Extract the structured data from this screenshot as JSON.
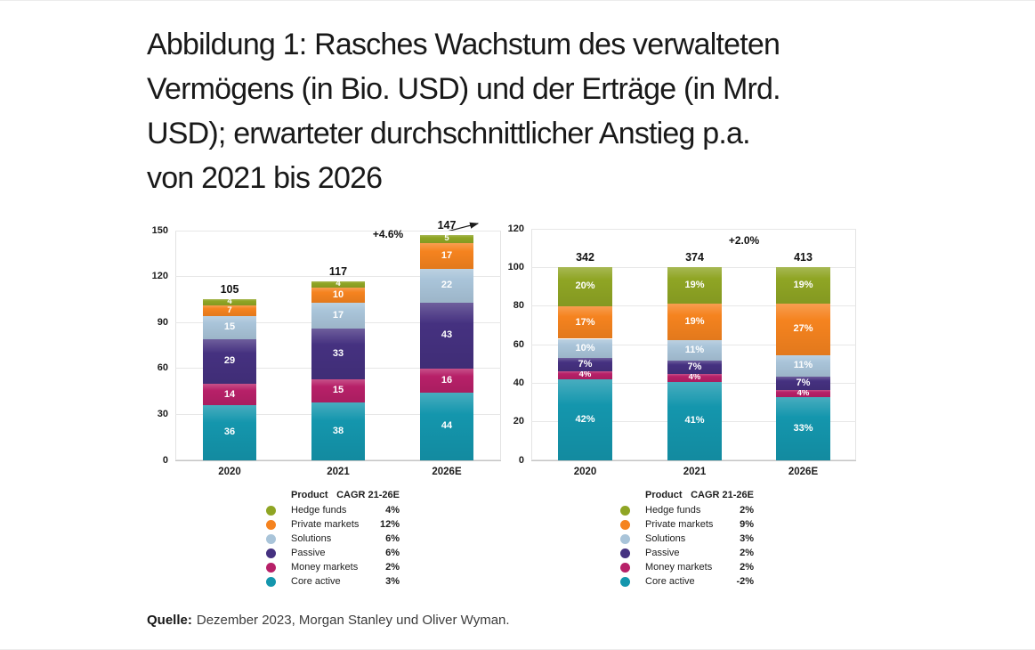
{
  "title": "Abbildung 1: Rasches Wachstum des verwalteten\nVermögens (in Bio. USD) und der Erträge (in Mrd.\nUSD); erwarteter durchschnittlicher Anstieg p.a.\nvon 2021 bis 2026",
  "source": {
    "label": "Quelle:",
    "text": "Dezember 2023, Morgan Stanley und Oliver Wyman."
  },
  "chart_data": [
    {
      "type": "bar",
      "stacked": true,
      "categories": [
        "2020",
        "2021",
        "2026E"
      ],
      "series": [
        {
          "name": "Core active",
          "color": "#1496ad",
          "values": [
            36,
            38,
            44
          ]
        },
        {
          "name": "Money markets",
          "color": "#b72068",
          "values": [
            14,
            15,
            16
          ]
        },
        {
          "name": "Passive",
          "color": "#453180",
          "values": [
            29,
            33,
            43
          ]
        },
        {
          "name": "Solutions",
          "color": "#a9c4d9",
          "values": [
            15,
            17,
            22
          ]
        },
        {
          "name": "Private markets",
          "color": "#f5831f",
          "values": [
            7,
            10,
            17
          ]
        },
        {
          "name": "Hedge funds",
          "color": "#8fa524",
          "values": [
            4,
            4,
            5
          ]
        }
      ],
      "totals": [
        "105",
        "117",
        "147"
      ],
      "growth_label": "+4.6%",
      "ylim": [
        0,
        150
      ],
      "y_ticks": [
        0,
        30,
        60,
        90,
        120,
        150
      ],
      "value_suffix": "",
      "normalize_to": null,
      "grid": true,
      "legend": {
        "product_header": "Product",
        "cagr_header": "CAGR 21-26E",
        "rows": [
          {
            "label": "Hedge funds",
            "cagr": "4%"
          },
          {
            "label": "Private markets",
            "cagr": "12%"
          },
          {
            "label": "Solutions",
            "cagr": "6%"
          },
          {
            "label": "Passive",
            "cagr": "6%"
          },
          {
            "label": "Money markets",
            "cagr": "2%"
          },
          {
            "label": "Core active",
            "cagr": "3%"
          }
        ]
      }
    },
    {
      "type": "bar",
      "stacked": true,
      "categories": [
        "2020",
        "2021",
        "2026E"
      ],
      "series": [
        {
          "name": "Core active",
          "color": "#1496ad",
          "values": [
            42,
            41,
            33
          ]
        },
        {
          "name": "Money markets",
          "color": "#b72068",
          "values": [
            4,
            4,
            4
          ]
        },
        {
          "name": "Passive",
          "color": "#453180",
          "values": [
            7,
            7,
            7
          ]
        },
        {
          "name": "Solutions",
          "color": "#a9c4d9",
          "values": [
            10,
            11,
            11
          ]
        },
        {
          "name": "Private markets",
          "color": "#f5831f",
          "values": [
            17,
            19,
            27
          ]
        },
        {
          "name": "Hedge funds",
          "color": "#8fa524",
          "values": [
            20,
            19,
            19
          ]
        }
      ],
      "totals": [
        "342",
        "374",
        "413"
      ],
      "growth_label": "+2.0%",
      "ylim": [
        0,
        120
      ],
      "y_ticks": [
        0,
        20,
        40,
        60,
        80,
        100,
        120
      ],
      "value_suffix": "%",
      "normalize_to": 100,
      "grid": true,
      "legend": {
        "product_header": "Product",
        "cagr_header": "CAGR 21-26E",
        "rows": [
          {
            "label": "Hedge funds",
            "cagr": "2%"
          },
          {
            "label": "Private markets",
            "cagr": "9%"
          },
          {
            "label": "Solutions",
            "cagr": "3%"
          },
          {
            "label": "Passive",
            "cagr": "2%"
          },
          {
            "label": "Money markets",
            "cagr": "2%"
          },
          {
            "label": "Core active",
            "cagr": "-2%"
          }
        ]
      }
    }
  ]
}
